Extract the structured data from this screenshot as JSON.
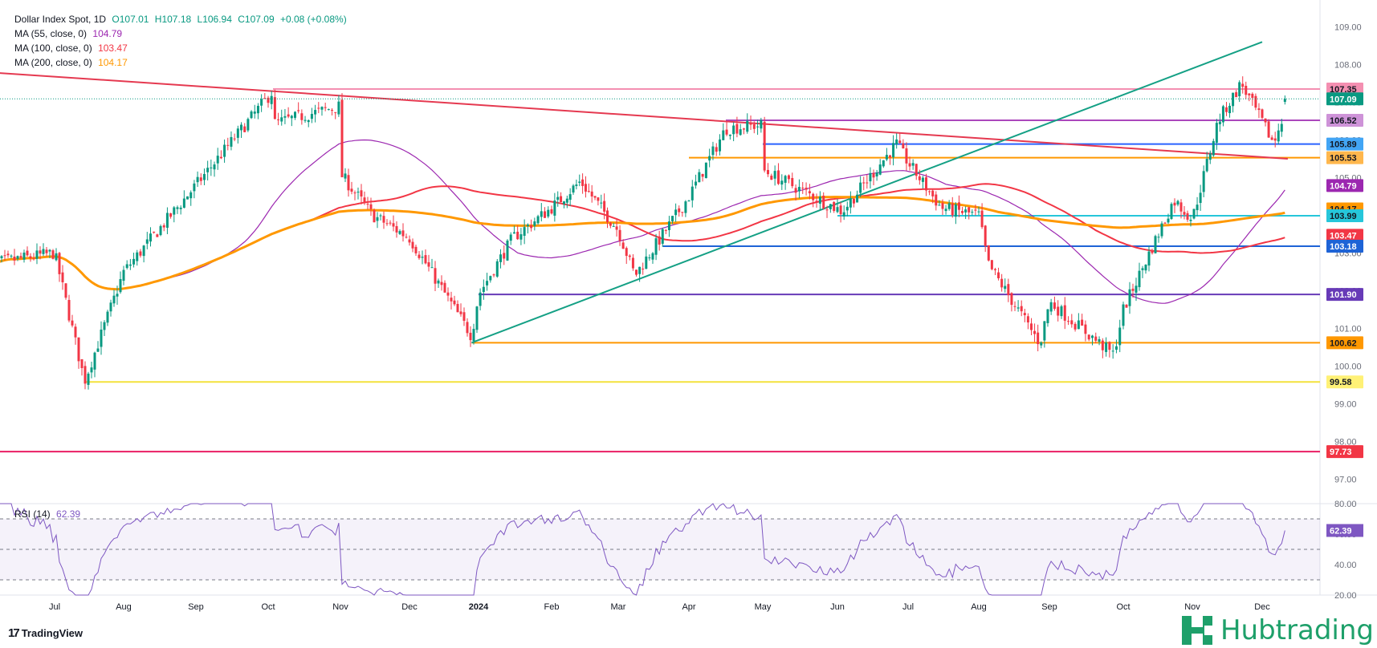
{
  "legend": {
    "title": "Dollar Index Spot, 1D",
    "open": "O107.01",
    "high": "H107.18",
    "low": "L106.94",
    "close": "C107.09",
    "change": "+0.08 (+0.08%)",
    "ma55_label": "MA (55, close, 0)",
    "ma55_value": "104.79",
    "ma100_label": "MA (100, close, 0)",
    "ma100_value": "103.47",
    "ma200_label": "MA (200, close, 0)",
    "ma200_value": "104.17"
  },
  "rsi_legend": {
    "label": "RSI (14)",
    "value": "62.39"
  },
  "branding": {
    "tradingview": "TradingView",
    "hubtrading": "Hubtrading"
  },
  "colors": {
    "up": "#089981",
    "down": "#f23645",
    "ma55": "#9c27b0",
    "ma100": "#f23645",
    "ma200": "#ff9800",
    "trend_up": "#14a085",
    "trend_down": "#e53950",
    "rsi": "#7e57c2"
  },
  "chart_data": [
    {
      "type": "candlestick",
      "title": "Dollar Index Spot, 1D",
      "ylim": [
        96.35,
        109.5
      ],
      "y_ticks": [
        97.0,
        98.0,
        99.0,
        100.0,
        101.0,
        102.0,
        103.0,
        104.0,
        105.0,
        106.0,
        107.0,
        108.0,
        109.0
      ],
      "x_ticks": [
        "Jul",
        "Aug",
        "Sep",
        "Oct",
        "Nov",
        "Dec",
        "2024",
        "Feb",
        "Mar",
        "Apr",
        "May",
        "Jun",
        "Jul",
        "Aug",
        "Sep",
        "Oct",
        "Nov",
        "Dec"
      ],
      "anchors": [
        [
          "Jun 2023",
          102.7
        ],
        [
          "Jul 2023",
          103.0
        ],
        [
          "Jul 14 2023",
          99.6
        ],
        [
          "Aug 2023",
          102.5
        ],
        [
          "Sep 2023",
          104.8
        ],
        [
          "Oct 3 2023",
          107.3
        ],
        [
          "Oct 2023",
          106.4
        ],
        [
          "Nov 1 2023",
          106.9
        ],
        [
          "Nov 2023",
          105.1
        ],
        [
          "Nov 15 2023",
          104.0
        ],
        [
          "Dec 2023",
          103.4
        ],
        [
          "Dec 28 2023",
          100.8
        ],
        [
          "Jan 2024",
          101.9
        ],
        [
          "Jan 15 2024",
          103.4
        ],
        [
          "Feb 2024",
          104.2
        ],
        [
          "Feb 14 2024",
          104.9
        ],
        [
          "Mar 2024",
          103.6
        ],
        [
          "Mar 8 2024",
          102.4
        ],
        [
          "Apr 2024",
          104.5
        ],
        [
          "Apr 16 2024",
          106.3
        ],
        [
          "May 1 2024",
          106.4
        ],
        [
          "May 2024",
          105.2
        ],
        [
          "Jun 3 2024",
          104.1
        ],
        [
          "Jun 26 2024",
          105.9
        ],
        [
          "Jul 2024",
          105.4
        ],
        [
          "Jul 15 2024",
          104.2
        ],
        [
          "Aug 2024",
          104.0
        ],
        [
          "Aug 5 2024",
          102.7
        ],
        [
          "Aug 27 2024",
          100.6
        ],
        [
          "Sep 2024",
          101.7
        ],
        [
          "Sep 27 2024",
          100.3
        ],
        [
          "Oct 2024",
          101.5
        ],
        [
          "Oct 23 2024",
          104.4
        ],
        [
          "Nov 2024",
          103.9
        ],
        [
          "Nov 12 2024",
          106.5
        ],
        [
          "Nov 22 2024",
          107.5
        ],
        [
          "Dec 6 2024",
          105.9
        ],
        [
          "Dec 12 2024",
          107.09
        ]
      ],
      "moving_averages": [
        {
          "name": "MA (55, close, 0)",
          "last": 104.79
        },
        {
          "name": "MA (100, close, 0)",
          "last": 103.47
        },
        {
          "name": "MA (200, close, 0)",
          "last": 104.17
        }
      ],
      "horizontal_levels": [
        {
          "value": 107.35,
          "color": "#f48fb1",
          "label": "107.35"
        },
        {
          "value": 106.52,
          "color": "#ab47bc",
          "label": "106.52"
        },
        {
          "value": 105.89,
          "color": "#2962ff",
          "label": "105.89"
        },
        {
          "value": 105.53,
          "color": "#ff9800",
          "label": "105.53"
        },
        {
          "value": 103.99,
          "color": "#26c6da",
          "label": "103.99"
        },
        {
          "value": 103.18,
          "color": "#1e63d6",
          "label": "103.18"
        },
        {
          "value": 101.9,
          "color": "#673ab7",
          "label": "101.90"
        },
        {
          "value": 100.62,
          "color": "#ff9800",
          "label": "100.62"
        },
        {
          "value": 99.58,
          "color": "#f3e23c",
          "label": "99.58"
        },
        {
          "value": 97.73,
          "color": "#e91e63",
          "label": "97.73"
        }
      ],
      "price_tags": [
        {
          "value": 107.35,
          "label": "107.35",
          "bg": "#f48fb1",
          "fg": "#131722"
        },
        {
          "value": 107.09,
          "label": "107.09",
          "bg": "#089981",
          "fg": "#ffffff"
        },
        {
          "value": 106.52,
          "label": "106.52",
          "bg": "#ce93d8",
          "fg": "#131722"
        },
        {
          "value": 105.89,
          "label": "105.89",
          "bg": "#42a5f5",
          "fg": "#131722"
        },
        {
          "value": 105.53,
          "label": "105.53",
          "bg": "#ffb74d",
          "fg": "#131722"
        },
        {
          "value": 104.79,
          "label": "104.79",
          "bg": "#9c27b0",
          "fg": "#ffffff"
        },
        {
          "value": 104.17,
          "label": "104.17",
          "bg": "#ff9800",
          "fg": "#131722"
        },
        {
          "value": 103.99,
          "label": "103.99",
          "bg": "#26c6da",
          "fg": "#131722"
        },
        {
          "value": 103.47,
          "label": "103.47",
          "bg": "#f23645",
          "fg": "#ffffff"
        },
        {
          "value": 103.18,
          "label": "103.18",
          "bg": "#1e63d6",
          "fg": "#ffffff"
        },
        {
          "value": 101.9,
          "label": "101.90",
          "bg": "#673ab7",
          "fg": "#ffffff"
        },
        {
          "value": 100.62,
          "label": "100.62",
          "bg": "#ff9800",
          "fg": "#131722"
        },
        {
          "value": 99.58,
          "label": "99.58",
          "bg": "#fff176",
          "fg": "#131722"
        },
        {
          "value": 97.73,
          "label": "97.73",
          "bg": "#f23645",
          "fg": "#ffffff"
        }
      ],
      "trendlines": [
        {
          "name": "resistance",
          "from": [
            "Jun 2023",
            107.8
          ],
          "to": [
            "Dec 12 2024",
            105.5
          ]
        },
        {
          "name": "support",
          "from": [
            "Dec 28 2023",
            100.62
          ],
          "to": [
            "Dec 2024",
            108.6
          ]
        }
      ]
    },
    {
      "type": "line",
      "title": "RSI (14)",
      "ylim": [
        20,
        80
      ],
      "y_ticks": [
        20.0,
        40.0,
        60.0,
        80.0
      ],
      "bands": [
        70,
        50,
        30
      ],
      "last": 62.39,
      "tag": "62.39"
    }
  ]
}
